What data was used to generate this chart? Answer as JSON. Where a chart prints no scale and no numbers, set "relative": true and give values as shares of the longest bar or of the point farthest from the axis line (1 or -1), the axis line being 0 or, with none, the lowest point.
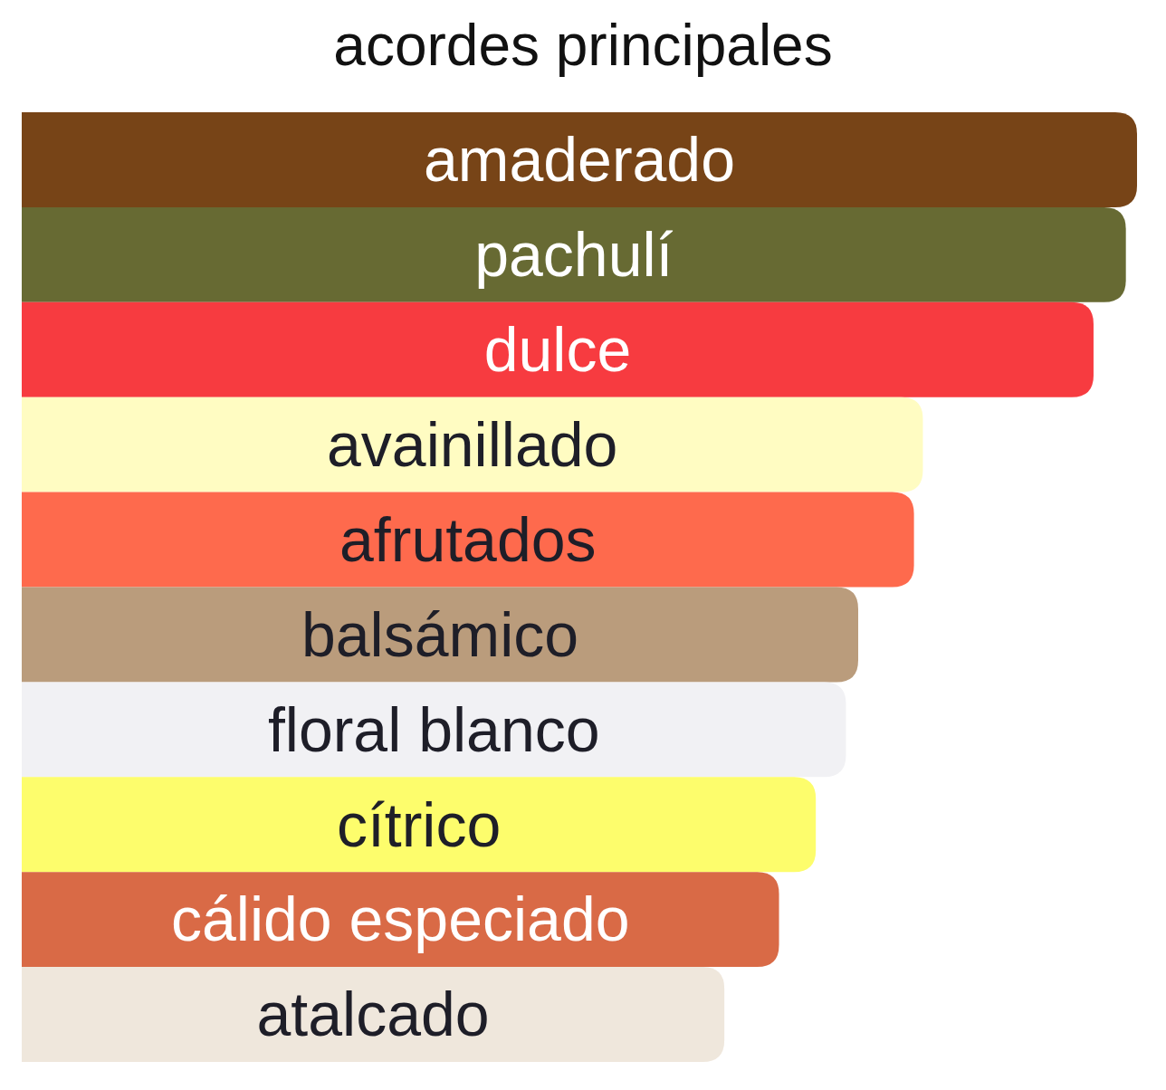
{
  "chart_data": {
    "type": "bar",
    "orientation": "horizontal",
    "relative": true,
    "title": "acordes principales",
    "categories": [
      "amaderado",
      "pachulí",
      "dulce",
      "avainillado",
      "afrutados",
      "balsámico",
      "floral blanco",
      "cítrico",
      "cálido especiado",
      "atalcado"
    ],
    "values": [
      1.0,
      0.99,
      0.961,
      0.808,
      0.8,
      0.75,
      0.739,
      0.712,
      0.679,
      0.63
    ],
    "colors": [
      "#774417",
      "#676a33",
      "#f73b40",
      "#fffcc2",
      "#fe6a4d",
      "#ba9c7c",
      "#f1f1f4",
      "#fdfd6c",
      "#d96a46",
      "#efe7dc"
    ]
  }
}
